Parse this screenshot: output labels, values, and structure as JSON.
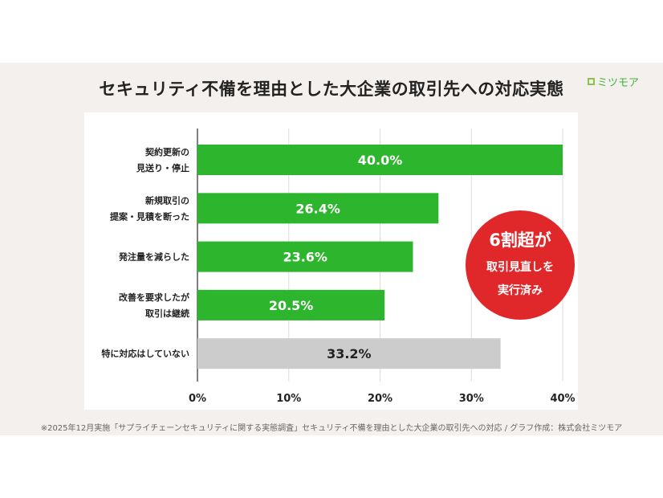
{
  "title": "セキュリティ不備を理由とした大企業の取引先への対応実態",
  "logo": "ミツモア",
  "footnote": "※2025年12月実施「サプライチェーンセキュリティに関する実態調査」セキュリティ不備を理由とした大企業の取引先への対応 / グラフ作成：株式会社ミツモア",
  "callout": {
    "line1": "6割超が",
    "line2": "取引見直しを",
    "line3": "実行済み",
    "color": "#e0282b"
  },
  "chart_data": {
    "type": "bar",
    "orientation": "horizontal",
    "categories": [
      [
        "契約更新の",
        "見送り・停止"
      ],
      [
        "新規取引の",
        "提案・見積を断った"
      ],
      [
        "発注量を減らした"
      ],
      [
        "改善を要求したが",
        "取引は継続"
      ],
      [
        "特に対応はしていない"
      ]
    ],
    "values": [
      40.0,
      26.4,
      23.6,
      20.5,
      33.2
    ],
    "value_labels": [
      "40.0%",
      "26.4%",
      "23.6%",
      "20.5%",
      "33.2%"
    ],
    "colors": [
      "#2db52d",
      "#2db52d",
      "#2db52d",
      "#2db52d",
      "#cccccc"
    ],
    "xlim": [
      0,
      40
    ],
    "xticks": [
      "0%",
      "10%",
      "20%",
      "30%",
      "40%"
    ],
    "grid": true
  }
}
